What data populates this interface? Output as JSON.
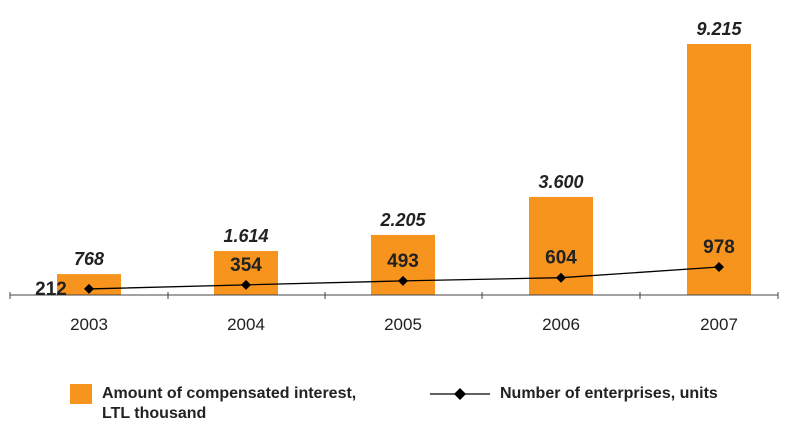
{
  "chart_data": {
    "type": "bar",
    "categories": [
      "2003",
      "2004",
      "2005",
      "2006",
      "2007"
    ],
    "series": [
      {
        "name": "Amount of compensated interest, LTL thousand",
        "kind": "bar",
        "values": [
          768,
          1614,
          2205,
          3600,
          9215
        ],
        "labels": [
          "768",
          "1.614",
          "2.205",
          "3.600",
          "9.215"
        ],
        "color": "#F7941D"
      },
      {
        "name": "Number of enterprises, units",
        "kind": "line",
        "values": [
          212,
          354,
          493,
          604,
          978
        ],
        "labels": [
          "212",
          "354",
          "493",
          "604",
          "978"
        ],
        "color": "#000000",
        "marker": "diamond"
      }
    ],
    "title": "",
    "xlabel": "",
    "ylabel": "",
    "grid": false,
    "legend_position": "bottom"
  },
  "legend": {
    "bar_label": "Amount of compensated interest,\nLTL thousand",
    "line_label": "Number of enterprises, units"
  }
}
